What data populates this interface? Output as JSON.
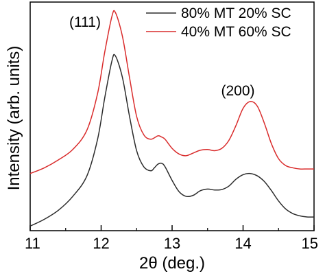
{
  "chart_data": {
    "type": "line",
    "title": "",
    "xlabel": "2θ (deg.)",
    "ylabel": "Intensity (arb. units)",
    "xlim": [
      11,
      15
    ],
    "ylim": [
      0,
      1
    ],
    "x_ticks": [
      "11",
      "12",
      "13",
      "14",
      "15"
    ],
    "y_tick_labels_shown": false,
    "grid": false,
    "legend_position": "top-right",
    "series": [
      {
        "name": "80% MT 20% SC",
        "color": "#2b2b2b",
        "points": [
          [
            11.0,
            0.02
          ],
          [
            11.2,
            0.05
          ],
          [
            11.4,
            0.09
          ],
          [
            11.6,
            0.15
          ],
          [
            11.8,
            0.24
          ],
          [
            11.95,
            0.4
          ],
          [
            12.05,
            0.58
          ],
          [
            12.15,
            0.74
          ],
          [
            12.2,
            0.765
          ],
          [
            12.3,
            0.67
          ],
          [
            12.4,
            0.5
          ],
          [
            12.5,
            0.35
          ],
          [
            12.6,
            0.28
          ],
          [
            12.7,
            0.262
          ],
          [
            12.75,
            0.275
          ],
          [
            12.8,
            0.291
          ],
          [
            12.85,
            0.295
          ],
          [
            12.9,
            0.28
          ],
          [
            13.0,
            0.22
          ],
          [
            13.1,
            0.17
          ],
          [
            13.2,
            0.15
          ],
          [
            13.3,
            0.155
          ],
          [
            13.4,
            0.175
          ],
          [
            13.5,
            0.182
          ],
          [
            13.6,
            0.178
          ],
          [
            13.7,
            0.18
          ],
          [
            13.8,
            0.195
          ],
          [
            13.9,
            0.225
          ],
          [
            14.0,
            0.245
          ],
          [
            14.1,
            0.25
          ],
          [
            14.2,
            0.24
          ],
          [
            14.3,
            0.215
          ],
          [
            14.4,
            0.175
          ],
          [
            14.5,
            0.13
          ],
          [
            14.6,
            0.095
          ],
          [
            14.7,
            0.075
          ],
          [
            14.8,
            0.065
          ],
          [
            14.9,
            0.06
          ],
          [
            15.0,
            0.06
          ]
        ]
      },
      {
        "name": "40% MT 60% SC",
        "color": "#d92b2b",
        "points": [
          [
            11.0,
            0.25
          ],
          [
            11.2,
            0.275
          ],
          [
            11.4,
            0.31
          ],
          [
            11.6,
            0.355
          ],
          [
            11.8,
            0.44
          ],
          [
            11.95,
            0.6
          ],
          [
            12.05,
            0.78
          ],
          [
            12.15,
            0.935
          ],
          [
            12.2,
            0.955
          ],
          [
            12.3,
            0.85
          ],
          [
            12.4,
            0.67
          ],
          [
            12.5,
            0.5
          ],
          [
            12.6,
            0.42
          ],
          [
            12.7,
            0.4
          ],
          [
            12.8,
            0.415
          ],
          [
            12.85,
            0.41
          ],
          [
            12.9,
            0.4
          ],
          [
            13.0,
            0.36
          ],
          [
            13.1,
            0.335
          ],
          [
            13.2,
            0.328
          ],
          [
            13.3,
            0.34
          ],
          [
            13.4,
            0.352
          ],
          [
            13.5,
            0.355
          ],
          [
            13.6,
            0.35
          ],
          [
            13.7,
            0.36
          ],
          [
            13.8,
            0.395
          ],
          [
            13.9,
            0.46
          ],
          [
            14.0,
            0.535
          ],
          [
            14.1,
            0.565
          ],
          [
            14.2,
            0.545
          ],
          [
            14.3,
            0.47
          ],
          [
            14.4,
            0.38
          ],
          [
            14.5,
            0.315
          ],
          [
            14.6,
            0.285
          ],
          [
            14.7,
            0.275
          ],
          [
            14.8,
            0.27
          ],
          [
            14.9,
            0.27
          ],
          [
            15.0,
            0.27
          ]
        ]
      }
    ],
    "annotations": [
      {
        "text": "(111)",
        "x": 11.7,
        "y": 0.92
      },
      {
        "text": "(200)",
        "x": 13.9,
        "y": 0.6
      }
    ]
  }
}
